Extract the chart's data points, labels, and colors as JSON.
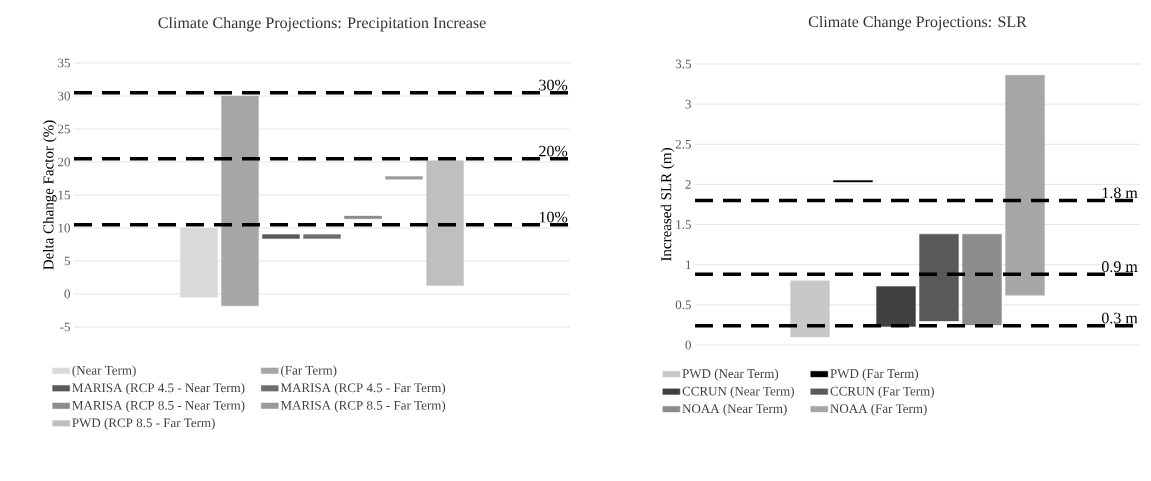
{
  "chart_data": [
    {
      "type": "bar",
      "title": "Climate Change Projections: Precipitation Increase",
      "ylabel": "Delta Change Factor (%)",
      "categories": [
        null
      ],
      "ylim": [
        -5,
        35
      ],
      "yticks": [
        -5,
        0,
        5,
        10,
        15,
        20,
        25,
        30,
        35
      ],
      "grid": "y",
      "legend": "bottom",
      "series": [
        {
          "name": "(Near Term)",
          "color": "#d9d9d9",
          "values": [
            10.5
          ],
          "base": [
            -0.5
          ]
        },
        {
          "name": "(Far Term)",
          "color": "#a6a6a6",
          "values": [
            31.8
          ],
          "base": [
            -1.8
          ]
        },
        {
          "name": "MARISA (RCP 4.5 - Near Term)",
          "color": "#595959",
          "values": [
            0.6
          ],
          "base": [
            8.4
          ]
        },
        {
          "name": "MARISA (RCP 4.5 - Far Term)",
          "color": "#6e6e6e",
          "values": [
            0.6
          ],
          "base": [
            8.4
          ]
        },
        {
          "name": "MARISA (RCP 8.5 - Near Term)",
          "color": "#8c8c8c",
          "values": [
            0.4
          ],
          "base": [
            11.4
          ]
        },
        {
          "name": "MARISA (RCP 8.5 - Far Term)",
          "color": "#9a9a9a",
          "values": [
            0.4
          ],
          "base": [
            17.4
          ]
        },
        {
          "name": "PWD (RCP 8.5 - Far Term)",
          "color": "#bfbfbf",
          "values": [
            18.9
          ],
          "base": [
            1.3
          ]
        }
      ],
      "ref_lines": [
        {
          "axis": "y",
          "value": 30.5,
          "label": "30%",
          "color": "#000000",
          "line_style": "dashed"
        },
        {
          "axis": "y",
          "value": 20.5,
          "label": "20%",
          "color": "#000000",
          "line_style": "dashed"
        },
        {
          "axis": "y",
          "value": 10.5,
          "label": "10%",
          "color": "#000000",
          "line_style": "dashed"
        }
      ]
    },
    {
      "type": "bar",
      "title": "Climate Change Projections: SLR",
      "ylabel": "Increased SLR (m)",
      "categories": [
        null
      ],
      "ylim": [
        0,
        3.5
      ],
      "yticks": [
        0,
        0.5,
        1,
        1.5,
        2,
        2.5,
        3,
        3.5
      ],
      "grid": "y",
      "legend": "bottom",
      "series": [
        {
          "name": "PWD (Near Term)",
          "color": "#c8c8c8",
          "values": [
            0.7
          ],
          "base": [
            0.1
          ]
        },
        {
          "name": "PWD (Far Term)",
          "color": "#000000",
          "values": [
            0.02
          ],
          "base": [
            2.03
          ]
        },
        {
          "name": "CCRUN (Near Term)",
          "color": "#404040",
          "values": [
            0.5
          ],
          "base": [
            0.23
          ]
        },
        {
          "name": "CCRUN (Far Term)",
          "color": "#595959",
          "values": [
            1.08
          ],
          "base": [
            0.3
          ]
        },
        {
          "name": "NOAA (Near Term)",
          "color": "#8c8c8c",
          "values": [
            1.13
          ],
          "base": [
            0.25
          ]
        },
        {
          "name": "NOAA (Far Term)",
          "color": "#a6a6a6",
          "values": [
            2.74
          ],
          "base": [
            0.62
          ]
        }
      ],
      "ref_lines": [
        {
          "axis": "y",
          "value": 1.8,
          "label": "1.8 m",
          "color": "#000000",
          "line_style": "dashed"
        },
        {
          "axis": "y",
          "value": 0.88,
          "label": "0.9 m",
          "color": "#000000",
          "line_style": "dashed"
        },
        {
          "axis": "y",
          "value": 0.24,
          "label": "0.3 m",
          "color": "#000000",
          "line_style": "dashed"
        }
      ]
    }
  ]
}
